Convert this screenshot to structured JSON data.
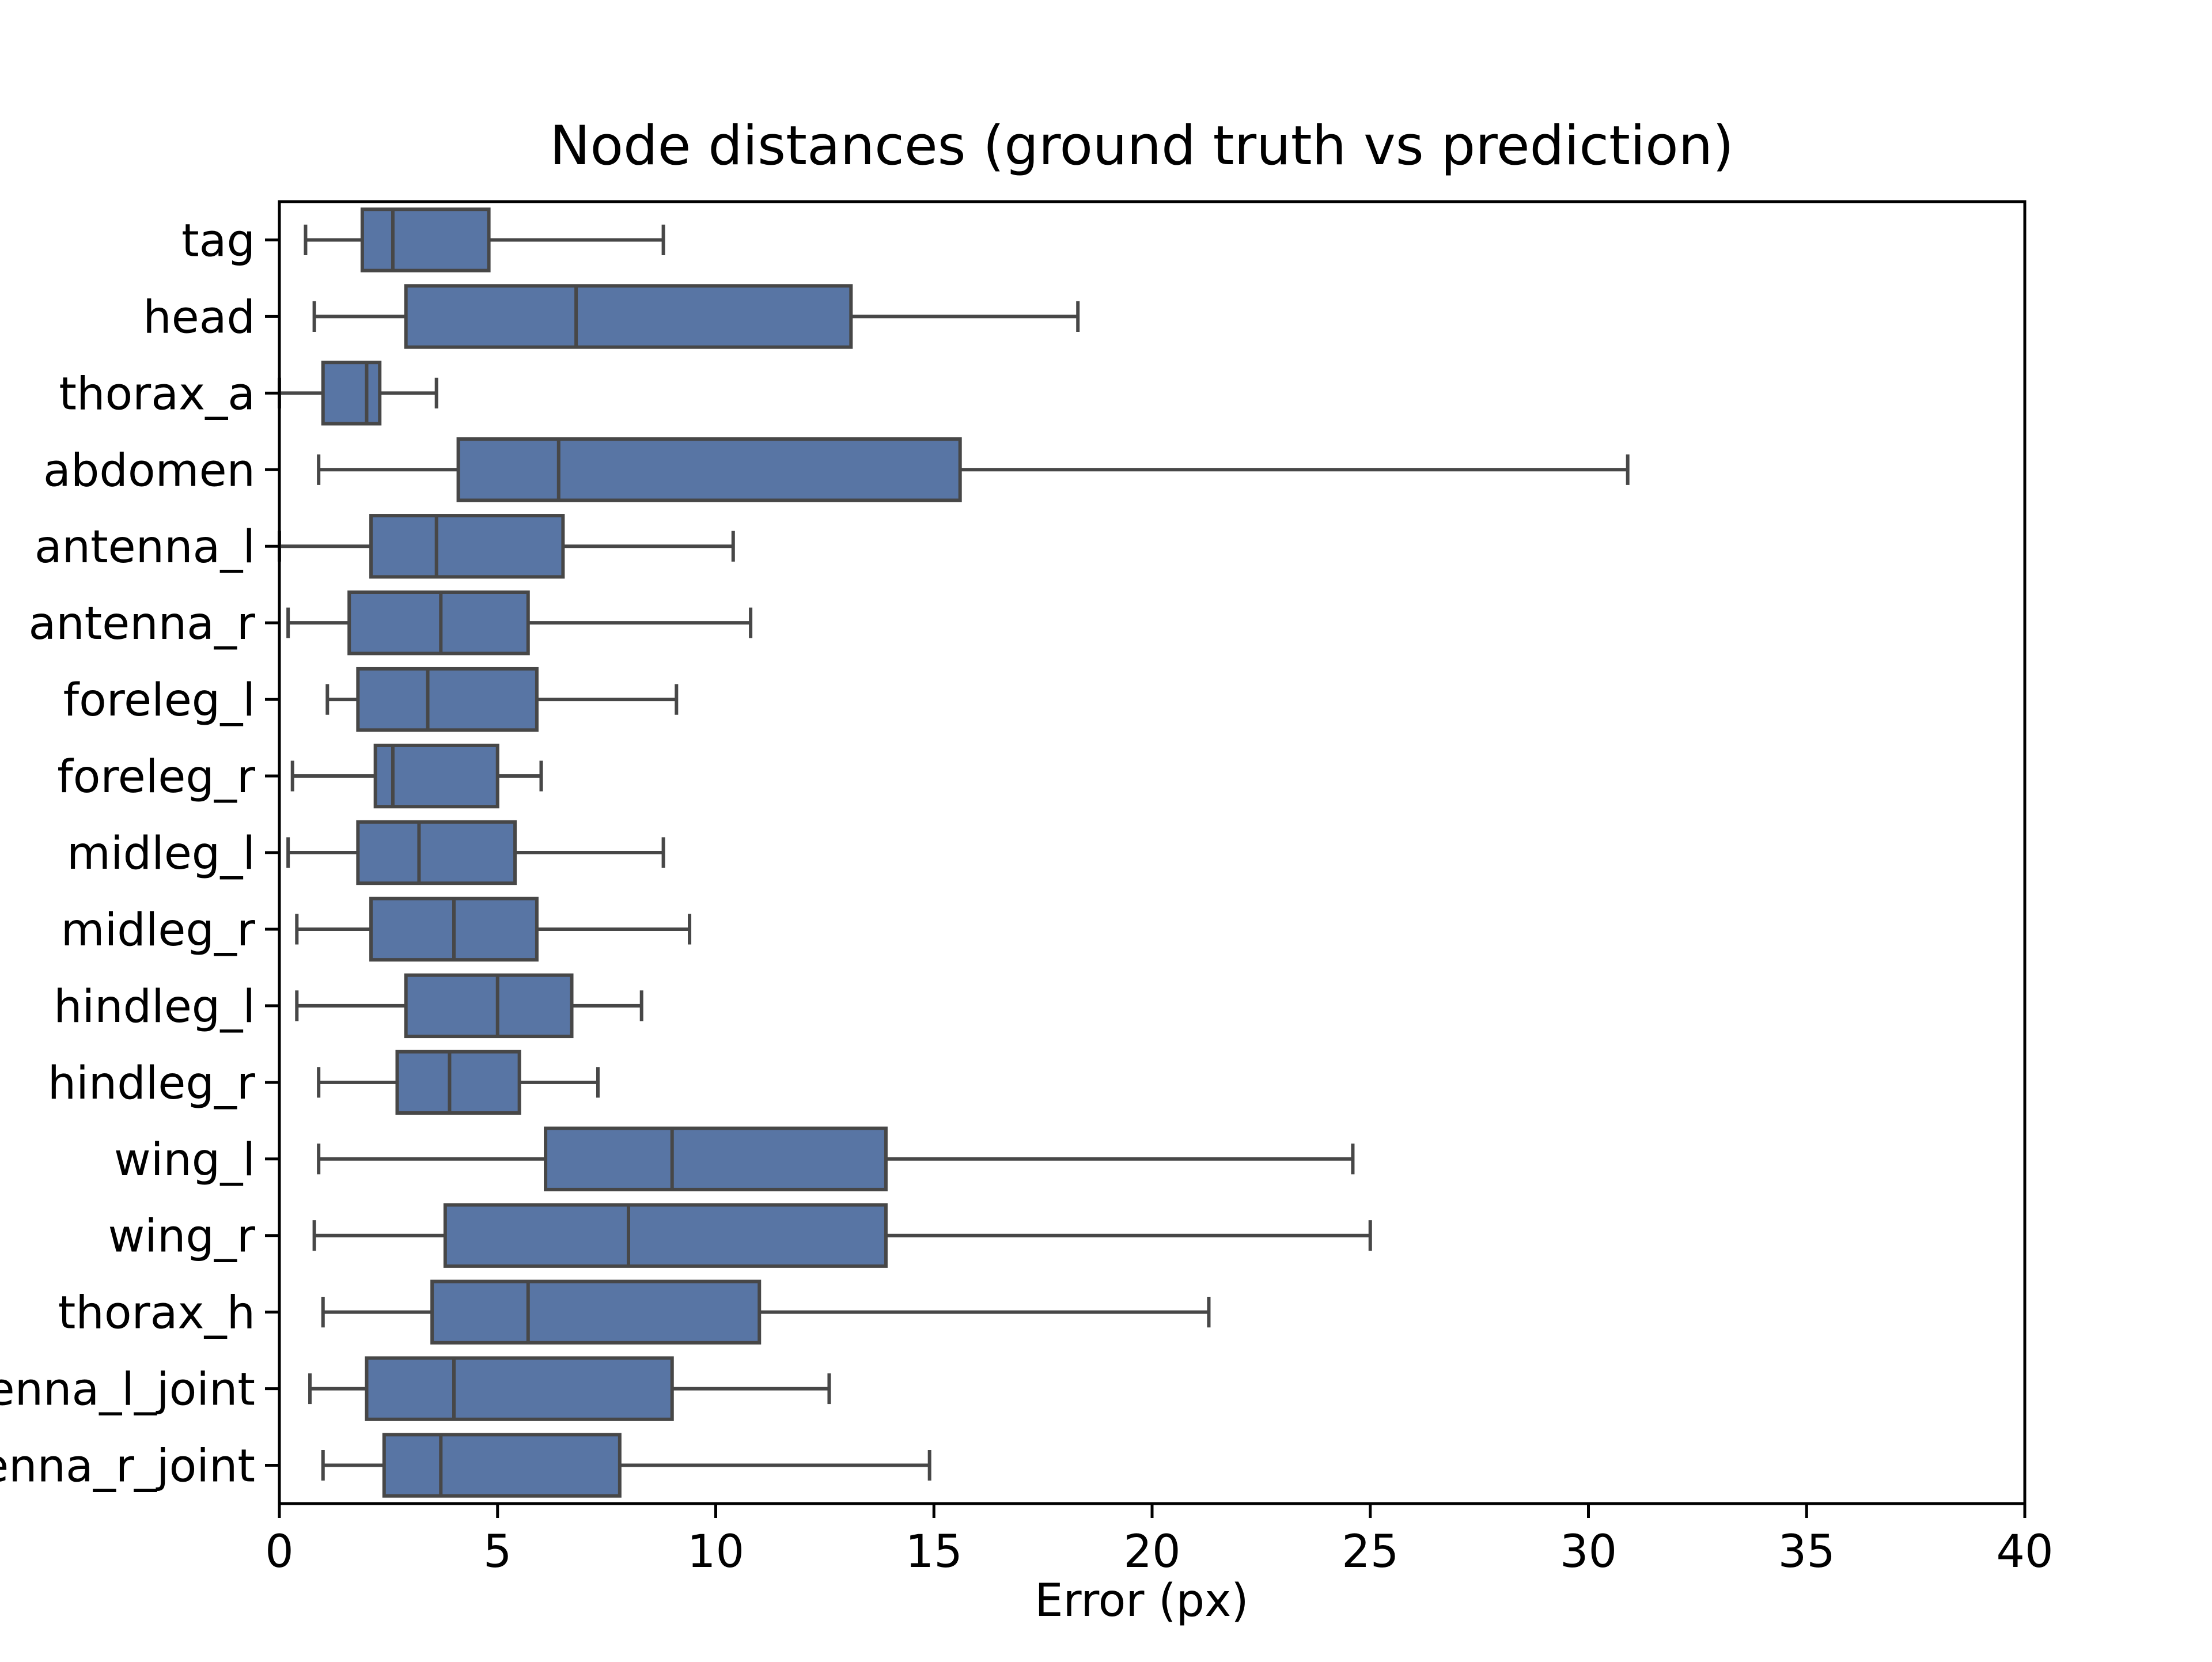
{
  "chart_data": {
    "type": "box",
    "orientation": "horizontal",
    "title": "Node distances (ground truth vs prediction)",
    "xlabel": "Error (px)",
    "ylabel": "",
    "xlim": [
      0,
      40
    ],
    "xticks": [
      0,
      5,
      10,
      15,
      20,
      25,
      30,
      35,
      40
    ],
    "grid": false,
    "legend": "none",
    "colors": {
      "box_fill": "#5875a4",
      "box_edge": "#474747",
      "axis": "#000000"
    },
    "categories": [
      "tag",
      "head",
      "thorax_a",
      "abdomen",
      "antenna_l",
      "antenna_r",
      "foreleg_l",
      "foreleg_r",
      "midleg_l",
      "midleg_r",
      "hindleg_l",
      "hindleg_r",
      "wing_l",
      "wing_r",
      "thorax_h",
      "antenna_l_joint",
      "antenna_r_joint"
    ],
    "boxes": [
      {
        "label": "tag",
        "whislo": 0.6,
        "q1": 1.9,
        "med": 2.6,
        "q3": 4.8,
        "whishi": 8.8
      },
      {
        "label": "head",
        "whislo": 0.8,
        "q1": 2.9,
        "med": 6.8,
        "q3": 13.1,
        "whishi": 18.3
      },
      {
        "label": "thorax_a",
        "whislo": 0.0,
        "q1": 1.0,
        "med": 2.0,
        "q3": 2.3,
        "whishi": 3.6
      },
      {
        "label": "abdomen",
        "whislo": 0.9,
        "q1": 4.1,
        "med": 6.4,
        "q3": 15.6,
        "whishi": 30.9
      },
      {
        "label": "antenna_l",
        "whislo": 0.0,
        "q1": 2.1,
        "med": 3.6,
        "q3": 6.5,
        "whishi": 10.4
      },
      {
        "label": "antenna_r",
        "whislo": 0.2,
        "q1": 1.6,
        "med": 3.7,
        "q3": 5.7,
        "whishi": 10.8
      },
      {
        "label": "foreleg_l",
        "whislo": 1.1,
        "q1": 1.8,
        "med": 3.4,
        "q3": 5.9,
        "whishi": 9.1
      },
      {
        "label": "foreleg_r",
        "whislo": 0.3,
        "q1": 2.2,
        "med": 2.6,
        "q3": 5.0,
        "whishi": 6.0
      },
      {
        "label": "midleg_l",
        "whislo": 0.2,
        "q1": 1.8,
        "med": 3.2,
        "q3": 5.4,
        "whishi": 8.8
      },
      {
        "label": "midleg_r",
        "whislo": 0.4,
        "q1": 2.1,
        "med": 4.0,
        "q3": 5.9,
        "whishi": 9.4
      },
      {
        "label": "hindleg_l",
        "whislo": 0.4,
        "q1": 2.9,
        "med": 5.0,
        "q3": 6.7,
        "whishi": 8.3
      },
      {
        "label": "hindleg_r",
        "whislo": 0.9,
        "q1": 2.7,
        "med": 3.9,
        "q3": 5.5,
        "whishi": 7.3
      },
      {
        "label": "wing_l",
        "whislo": 0.9,
        "q1": 6.1,
        "med": 9.0,
        "q3": 13.9,
        "whishi": 24.6
      },
      {
        "label": "wing_r",
        "whislo": 0.8,
        "q1": 3.8,
        "med": 8.0,
        "q3": 13.9,
        "whishi": 25.0
      },
      {
        "label": "thorax_h",
        "whislo": 1.0,
        "q1": 3.5,
        "med": 5.7,
        "q3": 11.0,
        "whishi": 21.3
      },
      {
        "label": "antenna_l_joint",
        "whislo": 0.7,
        "q1": 2.0,
        "med": 4.0,
        "q3": 9.0,
        "whishi": 12.6
      },
      {
        "label": "antenna_r_joint",
        "whislo": 1.0,
        "q1": 2.4,
        "med": 3.7,
        "q3": 7.8,
        "whishi": 14.9
      }
    ]
  }
}
